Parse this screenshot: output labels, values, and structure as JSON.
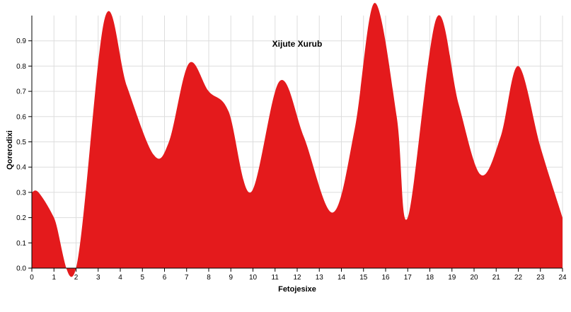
{
  "chart_data": {
    "type": "area",
    "title": "Xijute Xurub",
    "xlabel": "Fetojesixe",
    "ylabel": "Qorerodixi",
    "xlim": [
      0,
      24
    ],
    "ylim": [
      0,
      1.0
    ],
    "x_ticks": [
      0,
      1,
      2,
      3,
      4,
      5,
      6,
      7,
      8,
      9,
      10,
      11,
      12,
      13,
      14,
      15,
      16,
      17,
      18,
      19,
      20,
      21,
      22,
      23,
      24
    ],
    "y_ticks": [
      0.0,
      0.1,
      0.2,
      0.3,
      0.4,
      0.5,
      0.6,
      0.7,
      0.8,
      0.9
    ],
    "grid": true,
    "series": [
      {
        "color": "#e41a1c",
        "x": [
          0,
          0.3,
          1,
          2,
          3.3,
          4.3,
          5.5,
          6.2,
          7.1,
          8,
          8.9,
          9.9,
          11.2,
          12.3,
          13.6,
          14.6,
          15.5,
          16.5,
          17,
          18.3,
          19.3,
          20.3,
          21.2,
          22,
          23,
          24
        ],
        "y": [
          0.3,
          0.3,
          0.2,
          0.0,
          0.99,
          0.72,
          0.45,
          0.5,
          0.81,
          0.7,
          0.62,
          0.3,
          0.74,
          0.52,
          0.22,
          0.55,
          1.05,
          0.6,
          0.2,
          0.99,
          0.65,
          0.37,
          0.52,
          0.8,
          0.48,
          0.2
        ]
      }
    ]
  }
}
